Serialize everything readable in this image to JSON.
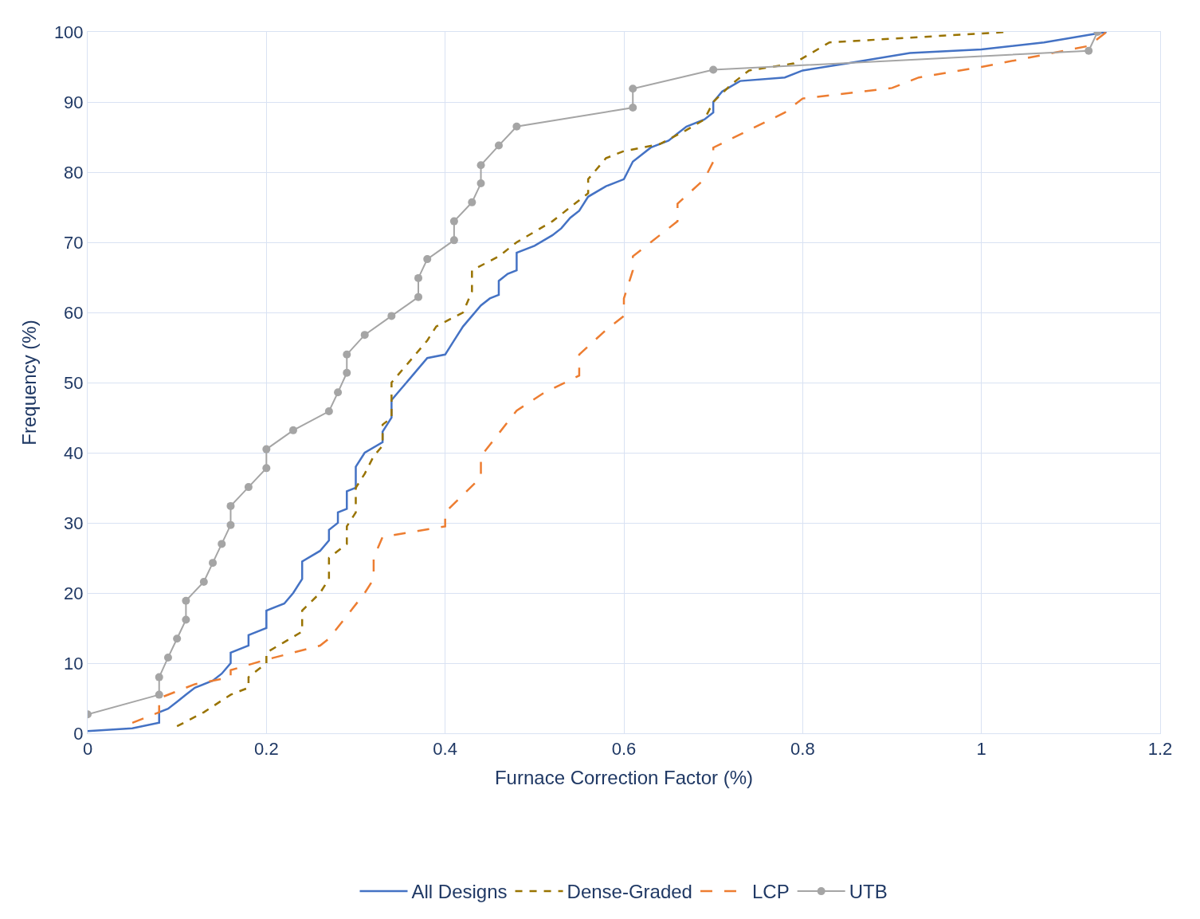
{
  "chart_data": {
    "type": "line",
    "xlabel": "Furnace Correction Factor (%)",
    "ylabel": "Frequency (%)",
    "xlim": [
      0,
      1.2
    ],
    "xticks": [
      0,
      {
        "value": 0.2,
        "label": "0.2"
      },
      {
        "value": 0.4,
        "label": "0.4"
      },
      {
        "value": 0.6,
        "label": "0.6"
      },
      {
        "value": 0.8,
        "label": "0.8"
      },
      1,
      {
        "value": 1.2,
        "label": "1.2"
      }
    ],
    "ylim": [
      0,
      100
    ],
    "yticks": [
      0,
      10,
      20,
      30,
      40,
      50,
      60,
      70,
      80,
      90,
      100
    ],
    "grid": true,
    "legend": "bottom",
    "series": [
      {
        "name": "All Designs",
        "color": "#4472c4",
        "line_style": "solid",
        "marker": "none",
        "x": [
          0,
          0.05,
          0.08,
          0.08,
          0.09,
          0.1,
          0.11,
          0.12,
          0.14,
          0.15,
          0.16,
          0.16,
          0.18,
          0.18,
          0.2,
          0.2,
          0.22,
          0.23,
          0.24,
          0.24,
          0.26,
          0.27,
          0.27,
          0.28,
          0.28,
          0.29,
          0.29,
          0.3,
          0.3,
          0.31,
          0.33,
          0.33,
          0.34,
          0.34,
          0.35,
          0.36,
          0.37,
          0.38,
          0.4,
          0.41,
          0.42,
          0.43,
          0.44,
          0.45,
          0.46,
          0.46,
          0.47,
          0.48,
          0.48,
          0.5,
          0.52,
          0.53,
          0.54,
          0.55,
          0.56,
          0.58,
          0.6,
          0.61,
          0.62,
          0.63,
          0.65,
          0.66,
          0.67,
          0.69,
          0.7,
          0.7,
          0.71,
          0.73,
          0.78,
          0.8,
          0.85,
          0.92,
          1.0,
          1.07,
          1.14
        ],
        "values": [
          0.3,
          0.7,
          1.5,
          3,
          3.5,
          4.5,
          5.5,
          6.5,
          7.5,
          8.5,
          10,
          11.5,
          12.5,
          14,
          15,
          17.5,
          18.5,
          20,
          22,
          24.5,
          26,
          27.5,
          29,
          30,
          31.5,
          32,
          34.5,
          35,
          38,
          40,
          41.5,
          43,
          45,
          47.5,
          49,
          50.5,
          52,
          53.5,
          54,
          56,
          58,
          59.5,
          61,
          62,
          62.5,
          64.5,
          65.5,
          66,
          68.5,
          69.5,
          71,
          72,
          73.5,
          74.5,
          76.5,
          78,
          79,
          81.5,
          82.5,
          83.5,
          84.5,
          85.5,
          86.5,
          87.5,
          88.5,
          90,
          91.5,
          93,
          93.5,
          94.5,
          95.5,
          97,
          97.5,
          98.5,
          100
        ]
      },
      {
        "name": "Dense-Graded",
        "color": "#997300",
        "line_style": "dashed",
        "marker": "none",
        "x": [
          0.1,
          0.13,
          0.16,
          0.18,
          0.18,
          0.2,
          0.2,
          0.22,
          0.24,
          0.24,
          0.26,
          0.27,
          0.27,
          0.29,
          0.29,
          0.3,
          0.3,
          0.31,
          0.32,
          0.33,
          0.33,
          0.34,
          0.34,
          0.36,
          0.38,
          0.39,
          0.42,
          0.43,
          0.43,
          0.46,
          0.48,
          0.52,
          0.55,
          0.56,
          0.56,
          0.58,
          0.6,
          0.64,
          0.67,
          0.69,
          0.7,
          0.72,
          0.74,
          0.79,
          0.83,
          1.03
        ],
        "values": [
          1,
          3,
          5.5,
          6.5,
          8,
          10,
          11.5,
          13,
          14.5,
          17.5,
          20,
          22,
          25,
          27,
          29.5,
          31.5,
          35,
          37,
          39.5,
          41,
          44,
          45,
          50,
          53,
          56,
          58,
          60,
          63,
          66,
          68,
          70,
          73,
          76,
          77,
          79,
          82,
          83,
          84,
          86,
          87.5,
          90,
          92.5,
          94.5,
          95.5,
          98.5,
          100
        ]
      },
      {
        "name": "LCP",
        "color": "#ed7d31",
        "line_style": "longdash",
        "marker": "none",
        "x": [
          0.05,
          0.08,
          0.08,
          0.1,
          0.12,
          0.16,
          0.16,
          0.2,
          0.26,
          0.27,
          0.31,
          0.32,
          0.32,
          0.33,
          0.4,
          0.4,
          0.44,
          0.44,
          0.48,
          0.51,
          0.55,
          0.55,
          0.58,
          0.6,
          0.6,
          0.61,
          0.61,
          0.63,
          0.66,
          0.66,
          0.69,
          0.7,
          0.7,
          0.74,
          0.78,
          0.8,
          0.9,
          0.93,
          1.0,
          1.12,
          1.14
        ],
        "values": [
          1.5,
          3,
          5,
          6,
          7,
          8,
          9,
          10.5,
          12.5,
          13.5,
          20,
          22,
          25,
          28,
          29.5,
          31.5,
          36.5,
          39.5,
          46,
          48.5,
          51,
          54,
          57.5,
          59.5,
          62,
          66,
          68,
          70,
          73,
          75.5,
          79,
          81.5,
          83.5,
          86,
          88.5,
          90.5,
          92,
          93.5,
          95,
          98,
          100
        ]
      },
      {
        "name": "UTB",
        "color": "#a5a5a5",
        "line_style": "solid",
        "marker": "circle",
        "x": [
          0,
          0.08,
          0.08,
          0.09,
          0.1,
          0.11,
          0.11,
          0.13,
          0.14,
          0.15,
          0.16,
          0.16,
          0.18,
          0.2,
          0.2,
          0.23,
          0.27,
          0.28,
          0.29,
          0.29,
          0.31,
          0.34,
          0.37,
          0.37,
          0.38,
          0.41,
          0.41,
          0.43,
          0.44,
          0.44,
          0.46,
          0.48,
          0.61,
          0.61,
          0.7,
          1.12,
          1.13
        ],
        "values": [
          2.7,
          5.5,
          8,
          10.8,
          13.5,
          16.2,
          18.9,
          21.6,
          24.3,
          27,
          29.7,
          32.4,
          35.1,
          37.8,
          40.5,
          43.2,
          45.9,
          48.6,
          51.4,
          54,
          56.8,
          59.5,
          62.2,
          64.9,
          67.6,
          70.3,
          73,
          75.7,
          78.4,
          81,
          83.8,
          86.5,
          89.2,
          91.9,
          94.6,
          97.3,
          100
        ]
      }
    ]
  }
}
